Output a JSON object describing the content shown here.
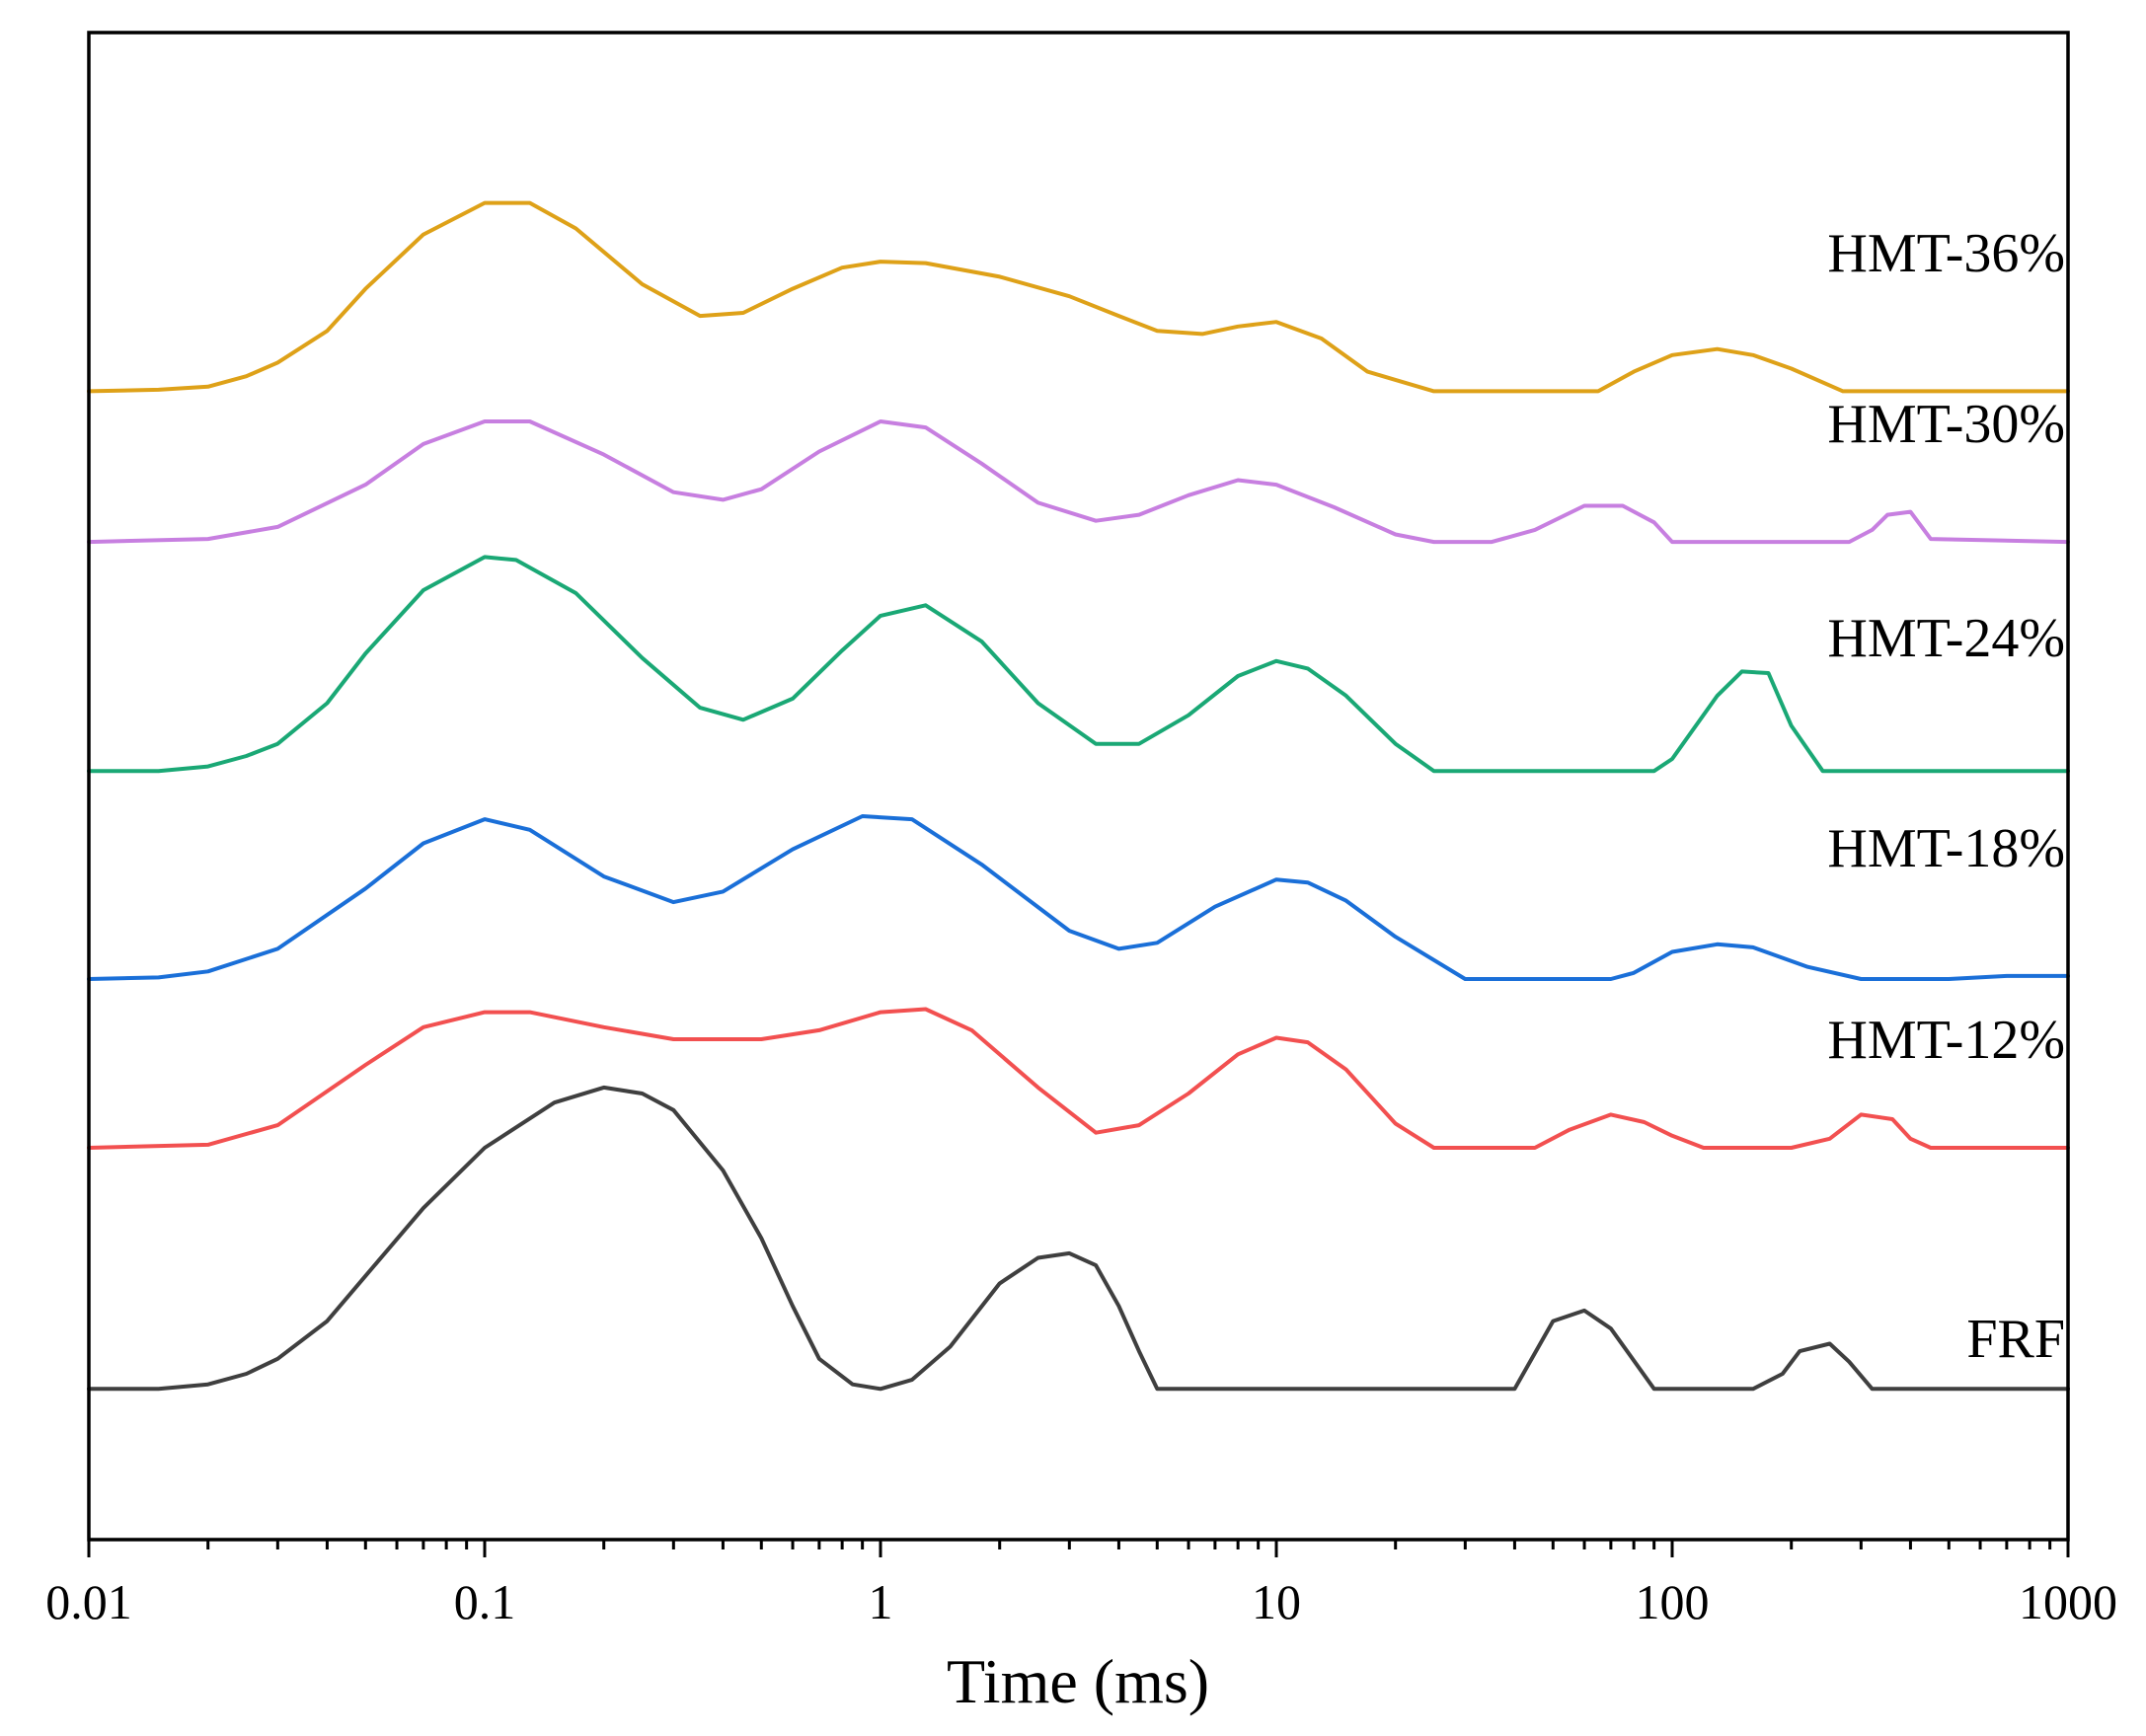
{
  "chart_data": {
    "type": "line",
    "title": "",
    "xlabel": "Time (ms)",
    "ylabel": "",
    "xscale": "log",
    "xlim": [
      0.01,
      1000
    ],
    "ylim": [
      0,
      1
    ],
    "grid": false,
    "x_ticks": [
      "0.01",
      "0.1",
      "1",
      "10",
      "100",
      "1000"
    ],
    "series": [
      {
        "name": "FRF",
        "label": "FRF",
        "color": "#3f3f3f",
        "points": [
          [
            0.01,
            0.1
          ],
          [
            0.015,
            0.1
          ],
          [
            0.02,
            0.103
          ],
          [
            0.025,
            0.11
          ],
          [
            0.03,
            0.12
          ],
          [
            0.04,
            0.145
          ],
          [
            0.05,
            0.175
          ],
          [
            0.07,
            0.22
          ],
          [
            0.1,
            0.26
          ],
          [
            0.15,
            0.29
          ],
          [
            0.2,
            0.3
          ],
          [
            0.25,
            0.296
          ],
          [
            0.3,
            0.285
          ],
          [
            0.4,
            0.245
          ],
          [
            0.5,
            0.2
          ],
          [
            0.6,
            0.155
          ],
          [
            0.7,
            0.12
          ],
          [
            0.85,
            0.103
          ],
          [
            1.0,
            0.1
          ],
          [
            1.2,
            0.106
          ],
          [
            1.5,
            0.128
          ],
          [
            2.0,
            0.17
          ],
          [
            2.5,
            0.187
          ],
          [
            3.0,
            0.19
          ],
          [
            3.5,
            0.182
          ],
          [
            4.0,
            0.155
          ],
          [
            4.5,
            0.125
          ],
          [
            5.0,
            0.1
          ],
          [
            40,
            0.1
          ],
          [
            50,
            0.145
          ],
          [
            60,
            0.152
          ],
          [
            70,
            0.14
          ],
          [
            90,
            0.1
          ],
          [
            160,
            0.1
          ],
          [
            190,
            0.11
          ],
          [
            210,
            0.125
          ],
          [
            250,
            0.13
          ],
          [
            280,
            0.118
          ],
          [
            320,
            0.1
          ],
          [
            1000,
            0.1
          ]
        ]
      },
      {
        "name": "HMT-12%",
        "label": "HMT-12%",
        "color": "#f25050",
        "points": [
          [
            0.01,
            0.26
          ],
          [
            0.02,
            0.262
          ],
          [
            0.03,
            0.275
          ],
          [
            0.05,
            0.315
          ],
          [
            0.07,
            0.34
          ],
          [
            0.1,
            0.35
          ],
          [
            0.13,
            0.35
          ],
          [
            0.2,
            0.34
          ],
          [
            0.3,
            0.332
          ],
          [
            0.5,
            0.332
          ],
          [
            0.7,
            0.338
          ],
          [
            1.0,
            0.35
          ],
          [
            1.3,
            0.352
          ],
          [
            1.7,
            0.338
          ],
          [
            2.5,
            0.3
          ],
          [
            3.5,
            0.27
          ],
          [
            4.5,
            0.275
          ],
          [
            6.0,
            0.296
          ],
          [
            8.0,
            0.322
          ],
          [
            10.0,
            0.333
          ],
          [
            12.0,
            0.33
          ],
          [
            15.0,
            0.312
          ],
          [
            20.0,
            0.276
          ],
          [
            25.0,
            0.26
          ],
          [
            45.0,
            0.26
          ],
          [
            55.0,
            0.272
          ],
          [
            70.0,
            0.282
          ],
          [
            85.0,
            0.277
          ],
          [
            100.0,
            0.268
          ],
          [
            120.0,
            0.26
          ],
          [
            200.0,
            0.26
          ],
          [
            250.0,
            0.266
          ],
          [
            300.0,
            0.282
          ],
          [
            360.0,
            0.279
          ],
          [
            400.0,
            0.266
          ],
          [
            450.0,
            0.26
          ],
          [
            1000.0,
            0.26
          ]
        ]
      },
      {
        "name": "HMT-18%",
        "label": "HMT-18%",
        "color": "#1a6fd8",
        "points": [
          [
            0.01,
            0.372
          ],
          [
            0.015,
            0.373
          ],
          [
            0.02,
            0.377
          ],
          [
            0.03,
            0.392
          ],
          [
            0.05,
            0.432
          ],
          [
            0.07,
            0.462
          ],
          [
            0.1,
            0.478
          ],
          [
            0.13,
            0.471
          ],
          [
            0.2,
            0.44
          ],
          [
            0.3,
            0.423
          ],
          [
            0.4,
            0.43
          ],
          [
            0.6,
            0.458
          ],
          [
            0.9,
            0.48
          ],
          [
            1.2,
            0.478
          ],
          [
            1.8,
            0.448
          ],
          [
            3.0,
            0.404
          ],
          [
            4.0,
            0.392
          ],
          [
            5.0,
            0.396
          ],
          [
            7.0,
            0.42
          ],
          [
            10.0,
            0.438
          ],
          [
            12.0,
            0.436
          ],
          [
            15.0,
            0.424
          ],
          [
            20.0,
            0.4
          ],
          [
            30.0,
            0.372
          ],
          [
            70.0,
            0.372
          ],
          [
            80.0,
            0.376
          ],
          [
            100.0,
            0.39
          ],
          [
            130.0,
            0.395
          ],
          [
            160.0,
            0.393
          ],
          [
            220.0,
            0.38
          ],
          [
            300.0,
            0.372
          ],
          [
            500.0,
            0.372
          ],
          [
            700.0,
            0.374
          ],
          [
            1000.0,
            0.374
          ]
        ]
      },
      {
        "name": "HMT-24%",
        "label": "HMT-24%",
        "color": "#1aa875",
        "points": [
          [
            0.01,
            0.51
          ],
          [
            0.015,
            0.51
          ],
          [
            0.02,
            0.513
          ],
          [
            0.025,
            0.52
          ],
          [
            0.03,
            0.528
          ],
          [
            0.04,
            0.555
          ],
          [
            0.05,
            0.588
          ],
          [
            0.07,
            0.63
          ],
          [
            0.1,
            0.652
          ],
          [
            0.12,
            0.65
          ],
          [
            0.17,
            0.628
          ],
          [
            0.25,
            0.585
          ],
          [
            0.35,
            0.552
          ],
          [
            0.45,
            0.544
          ],
          [
            0.6,
            0.558
          ],
          [
            0.8,
            0.59
          ],
          [
            1.0,
            0.613
          ],
          [
            1.3,
            0.62
          ],
          [
            1.8,
            0.596
          ],
          [
            2.5,
            0.555
          ],
          [
            3.5,
            0.528
          ],
          [
            4.5,
            0.528
          ],
          [
            6.0,
            0.547
          ],
          [
            8.0,
            0.573
          ],
          [
            10.0,
            0.583
          ],
          [
            12.0,
            0.578
          ],
          [
            15.0,
            0.56
          ],
          [
            20.0,
            0.528
          ],
          [
            25.0,
            0.51
          ],
          [
            90.0,
            0.51
          ],
          [
            100.0,
            0.518
          ],
          [
            130.0,
            0.56
          ],
          [
            150.0,
            0.576
          ],
          [
            175.0,
            0.575
          ],
          [
            200.0,
            0.54
          ],
          [
            240.0,
            0.51
          ],
          [
            1000.0,
            0.51
          ]
        ]
      },
      {
        "name": "HMT-30%",
        "label": "HMT-30%",
        "color": "#c77fe0",
        "points": [
          [
            0.01,
            0.662
          ],
          [
            0.02,
            0.664
          ],
          [
            0.03,
            0.672
          ],
          [
            0.05,
            0.7
          ],
          [
            0.07,
            0.727
          ],
          [
            0.1,
            0.742
          ],
          [
            0.13,
            0.742
          ],
          [
            0.2,
            0.72
          ],
          [
            0.3,
            0.695
          ],
          [
            0.4,
            0.69
          ],
          [
            0.5,
            0.697
          ],
          [
            0.7,
            0.722
          ],
          [
            1.0,
            0.742
          ],
          [
            1.3,
            0.738
          ],
          [
            1.8,
            0.714
          ],
          [
            2.5,
            0.688
          ],
          [
            3.5,
            0.676
          ],
          [
            4.5,
            0.68
          ],
          [
            6.0,
            0.693
          ],
          [
            8.0,
            0.703
          ],
          [
            10.0,
            0.7
          ],
          [
            14.0,
            0.685
          ],
          [
            20.0,
            0.667
          ],
          [
            25.0,
            0.662
          ],
          [
            35.0,
            0.662
          ],
          [
            45.0,
            0.67
          ],
          [
            60.0,
            0.686
          ],
          [
            75.0,
            0.686
          ],
          [
            90.0,
            0.675
          ],
          [
            100.0,
            0.662
          ],
          [
            280.0,
            0.662
          ],
          [
            320.0,
            0.67
          ],
          [
            350.0,
            0.68
          ],
          [
            400.0,
            0.682
          ],
          [
            450.0,
            0.664
          ],
          [
            1000.0,
            0.662
          ]
        ]
      },
      {
        "name": "HMT-36%",
        "label": "HMT-36%",
        "color": "#dea118",
        "points": [
          [
            0.01,
            0.762
          ],
          [
            0.015,
            0.763
          ],
          [
            0.02,
            0.765
          ],
          [
            0.025,
            0.772
          ],
          [
            0.03,
            0.781
          ],
          [
            0.04,
            0.802
          ],
          [
            0.05,
            0.83
          ],
          [
            0.07,
            0.866
          ],
          [
            0.1,
            0.887
          ],
          [
            0.13,
            0.887
          ],
          [
            0.17,
            0.87
          ],
          [
            0.25,
            0.833
          ],
          [
            0.35,
            0.812
          ],
          [
            0.45,
            0.814
          ],
          [
            0.6,
            0.83
          ],
          [
            0.8,
            0.844
          ],
          [
            1.0,
            0.848
          ],
          [
            1.3,
            0.847
          ],
          [
            2.0,
            0.838
          ],
          [
            3.0,
            0.825
          ],
          [
            4.0,
            0.812
          ],
          [
            5.0,
            0.802
          ],
          [
            6.5,
            0.8
          ],
          [
            8.0,
            0.805
          ],
          [
            10.0,
            0.808
          ],
          [
            13.0,
            0.797
          ],
          [
            17.0,
            0.775
          ],
          [
            25.0,
            0.762
          ],
          [
            65.0,
            0.762
          ],
          [
            80.0,
            0.775
          ],
          [
            100.0,
            0.786
          ],
          [
            130.0,
            0.79
          ],
          [
            160.0,
            0.786
          ],
          [
            200.0,
            0.777
          ],
          [
            270.0,
            0.762
          ],
          [
            1000.0,
            0.762
          ]
        ]
      }
    ]
  }
}
